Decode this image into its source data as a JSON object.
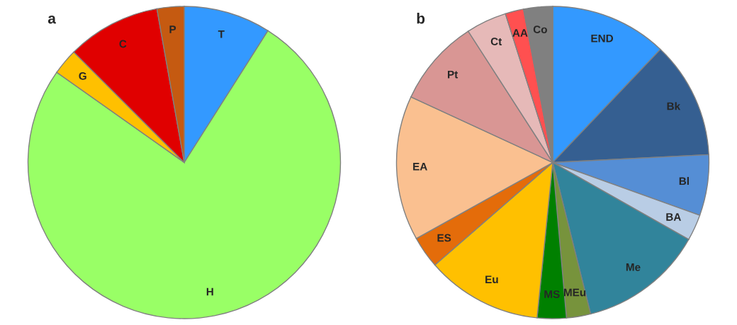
{
  "chart_data": [
    {
      "type": "pie",
      "title": "a",
      "categories": [
        "T",
        "H",
        "G",
        "C",
        "P"
      ],
      "values": [
        9.0,
        75.8,
        2.7,
        9.7,
        2.8
      ],
      "colors": [
        "#3399ff",
        "#99ff66",
        "#ffc000",
        "#e00000",
        "#c55a11"
      ]
    },
    {
      "type": "pie",
      "title": "b",
      "categories": [
        "END",
        "Bk",
        "Bl",
        "BA",
        "Me",
        "MEu",
        "MS",
        "Eu",
        "ES",
        "EA",
        "Pt",
        "Ct",
        "AA",
        "Co"
      ],
      "values": [
        12.1,
        12.1,
        6.3,
        2.7,
        12.9,
        2.5,
        3.0,
        12.0,
        3.3,
        15.0,
        9.0,
        4.2,
        1.9,
        3.0
      ],
      "colors": [
        "#3399ff",
        "#355f91",
        "#558ed5",
        "#b9cde5",
        "#31849b",
        "#77933c",
        "#008000",
        "#ffc000",
        "#e46c0a",
        "#fac090",
        "#d99694",
        "#e6b9b8",
        "#ff5050",
        "#808080"
      ]
    }
  ]
}
